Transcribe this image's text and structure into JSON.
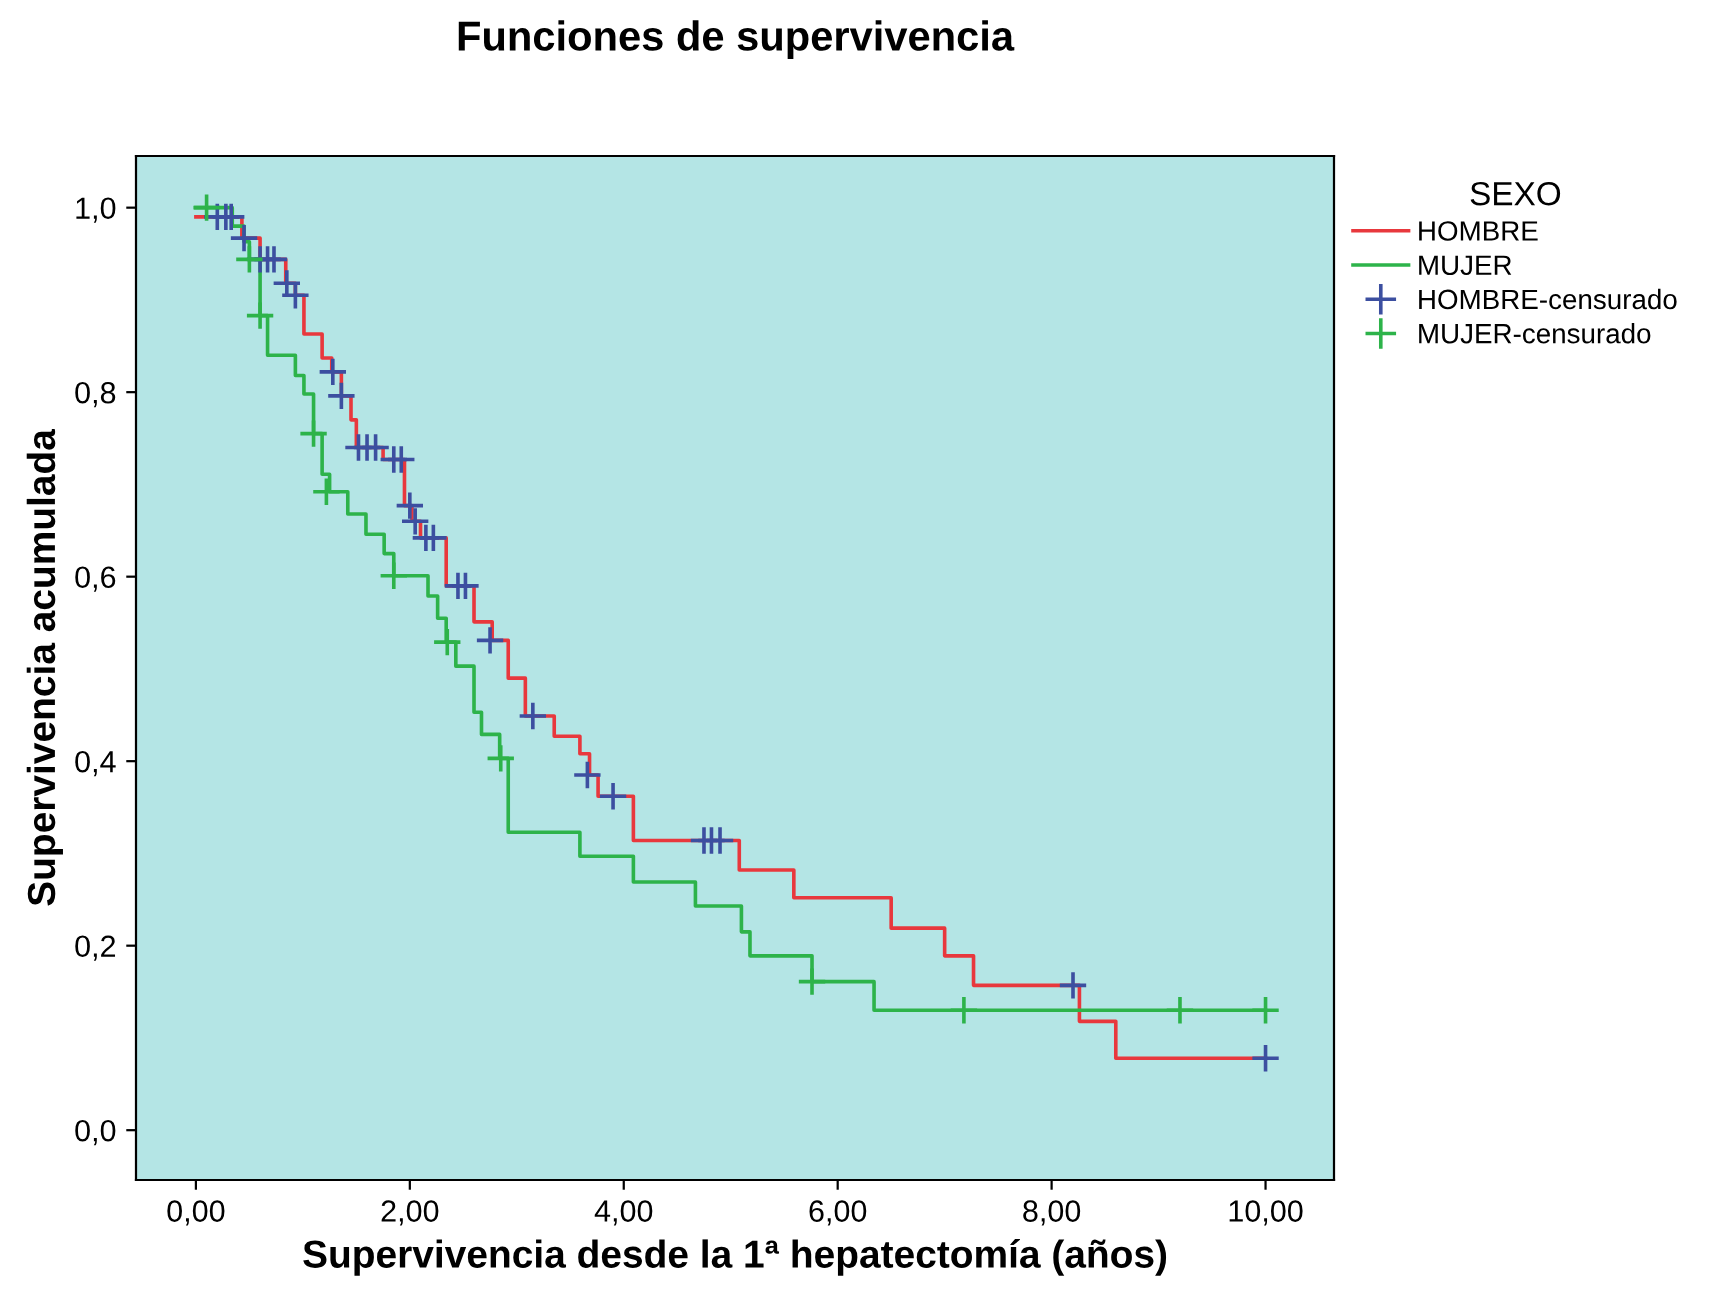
{
  "chart_data": {
    "type": "step",
    "title": "Funciones de supervivencia",
    "xlabel": "Supervivencia desde la 1ª hepatectomía (años)",
    "ylabel": "Supervivencia acumulada",
    "legend_title": "SEXO",
    "legend": "right",
    "grid": false,
    "xlim": [
      -0.56,
      10.64
    ],
    "ylim": [
      -0.054,
      1.056
    ],
    "xticks": [
      {
        "value": 0,
        "label": "0,00"
      },
      {
        "value": 2,
        "label": "2,00"
      },
      {
        "value": 4,
        "label": "4,00"
      },
      {
        "value": 6,
        "label": "6,00"
      },
      {
        "value": 8,
        "label": "8,00"
      },
      {
        "value": 10,
        "label": "10,00"
      }
    ],
    "yticks": [
      {
        "value": 0,
        "label": "0,0"
      },
      {
        "value": 0.2,
        "label": "0,2"
      },
      {
        "value": 0.4,
        "label": "0,4"
      },
      {
        "value": 0.6,
        "label": "0,6"
      },
      {
        "value": 0.8,
        "label": "0,8"
      },
      {
        "value": 1.0,
        "label": "1,0"
      }
    ],
    "series": [
      {
        "name": "HOMBRE",
        "color": "#e8383d",
        "x": [
          0,
          0.43,
          0.6,
          0.84,
          0.93,
          1.01,
          1.18,
          1.27,
          1.36,
          1.45,
          1.5,
          1.75,
          1.95,
          2.02,
          2.1,
          2.34,
          2.6,
          2.77,
          2.92,
          3.08,
          3.35,
          3.59,
          3.68,
          3.76,
          4.09,
          5.08,
          5.59,
          6.5,
          7.0,
          7.27,
          8.26,
          8.6,
          10.0
        ],
        "values": [
          0.99,
          0.967,
          0.944,
          0.918,
          0.905,
          0.863,
          0.837,
          0.822,
          0.796,
          0.77,
          0.74,
          0.727,
          0.677,
          0.66,
          0.642,
          0.59,
          0.551,
          0.531,
          0.49,
          0.449,
          0.427,
          0.408,
          0.385,
          0.362,
          0.314,
          0.282,
          0.252,
          0.219,
          0.189,
          0.157,
          0.118,
          0.078,
          0.078
        ]
      },
      {
        "name": "MUJER",
        "color": "#2db34a",
        "x": [
          0,
          0.34,
          0.45,
          0.5,
          0.6,
          0.67,
          0.93,
          1.01,
          1.1,
          1.18,
          1.25,
          1.42,
          1.59,
          1.76,
          1.85,
          2.17,
          2.26,
          2.34,
          2.43,
          2.6,
          2.67,
          2.84,
          2.92,
          3.59,
          4.09,
          4.67,
          5.1,
          5.18,
          5.76,
          6.34,
          10.0
        ],
        "values": [
          1.0,
          0.98,
          0.963,
          0.944,
          0.883,
          0.84,
          0.818,
          0.798,
          0.755,
          0.711,
          0.692,
          0.668,
          0.646,
          0.625,
          0.601,
          0.579,
          0.555,
          0.529,
          0.503,
          0.453,
          0.429,
          0.403,
          0.323,
          0.297,
          0.269,
          0.243,
          0.215,
          0.189,
          0.161,
          0.13,
          0.13
        ]
      },
      {
        "name": "HOMBRE-censurado",
        "type": "scatter",
        "marker": "cross",
        "color": "#3c4fa0",
        "x": [
          0.2,
          0.28,
          0.33,
          0.45,
          0.6,
          0.67,
          0.73,
          0.85,
          0.93,
          1.28,
          1.36,
          1.52,
          1.6,
          1.68,
          1.85,
          1.92,
          2.0,
          2.05,
          2.15,
          2.22,
          2.45,
          2.52,
          2.75,
          3.15,
          3.66,
          3.9,
          4.75,
          4.82,
          4.9,
          8.2,
          10.0
        ],
        "values": [
          0.99,
          0.99,
          0.99,
          0.967,
          0.944,
          0.944,
          0.944,
          0.918,
          0.905,
          0.822,
          0.796,
          0.74,
          0.74,
          0.74,
          0.727,
          0.727,
          0.677,
          0.66,
          0.642,
          0.642,
          0.59,
          0.59,
          0.531,
          0.449,
          0.385,
          0.362,
          0.314,
          0.314,
          0.314,
          0.157,
          0.078
        ]
      },
      {
        "name": "MUJER-censurado",
        "type": "scatter",
        "marker": "cross",
        "color": "#2db34a",
        "x": [
          0.1,
          0.5,
          0.6,
          1.1,
          1.22,
          1.85,
          2.35,
          2.85,
          5.76,
          7.18,
          9.2,
          10.0
        ],
        "values": [
          1.0,
          0.944,
          0.883,
          0.755,
          0.692,
          0.601,
          0.529,
          0.403,
          0.161,
          0.13,
          0.13,
          0.13
        ]
      }
    ]
  }
}
